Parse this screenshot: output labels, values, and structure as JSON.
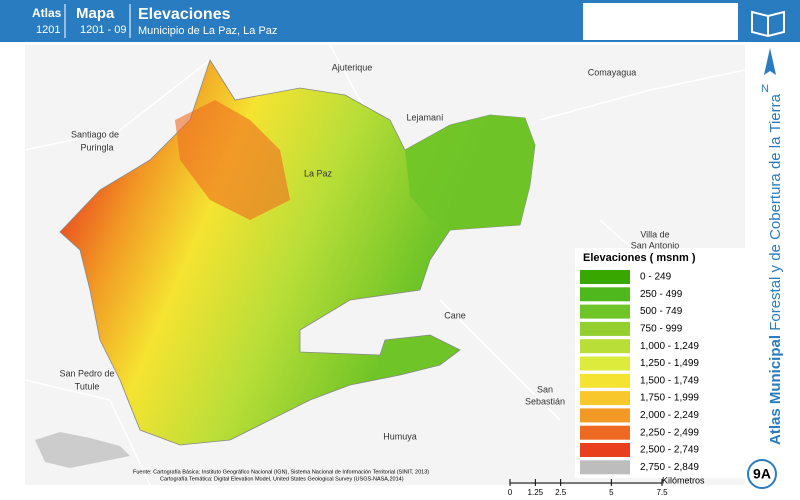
{
  "header": {
    "atlas_label": "Atlas",
    "atlas_number": "1201",
    "map_label": "Mapa",
    "map_number": "1201 - 09",
    "title": "Elevaciones",
    "subtitle": "Municipio de La Paz, La Paz"
  },
  "side": {
    "north": "N",
    "series_title_bold": "Atlas Municipal",
    "series_title": "Forestal y de Cobertura de la Tierra",
    "sheet": "9A"
  },
  "places": [
    "Ajuterique",
    "Comayagua",
    "Lejamaní",
    "Santiago de",
    "Puringla",
    "La Paz",
    "Villa de",
    "San Antonio",
    "Cane",
    "San Pedro de",
    "Tutule",
    "San",
    "Sebastián",
    "Humuya"
  ],
  "legend": {
    "title": "Elevaciones ( msnm )",
    "items": [
      {
        "label": "0 - 249",
        "color": "#38a800"
      },
      {
        "label": "250 - 499",
        "color": "#4fb81c"
      },
      {
        "label": "500 - 749",
        "color": "#6fc427"
      },
      {
        "label": "750 - 999",
        "color": "#93d02f"
      },
      {
        "label": "1,000 - 1,249",
        "color": "#bade38"
      },
      {
        "label": "1,250 - 1,499",
        "color": "#dceb3c"
      },
      {
        "label": "1,500 - 1,749",
        "color": "#f5e331"
      },
      {
        "label": "1,750 - 1,999",
        "color": "#f7c72b"
      },
      {
        "label": "2,000 - 2,249",
        "color": "#f29a25"
      },
      {
        "label": "2,250 - 2,499",
        "color": "#ee6a22"
      },
      {
        "label": "2,500 - 2,749",
        "color": "#e8401f"
      },
      {
        "label": "2,750 - 2,849",
        "color": "#bdbdbd"
      }
    ]
  },
  "source": {
    "line1": "Fuente: Cartografía Básica: Instituto Geográfico Nacional (IGN), Sistema Nacional de Información Territorial (SINIT, 2013)",
    "line2": "Cartografía Temática: Digital Elevation Model, United States Geological Survey (USGS-NASA,2014)"
  },
  "scale": {
    "ticks": [
      0,
      1.25,
      2.5,
      5,
      7.5
    ],
    "unit": "Kilómetros"
  }
}
